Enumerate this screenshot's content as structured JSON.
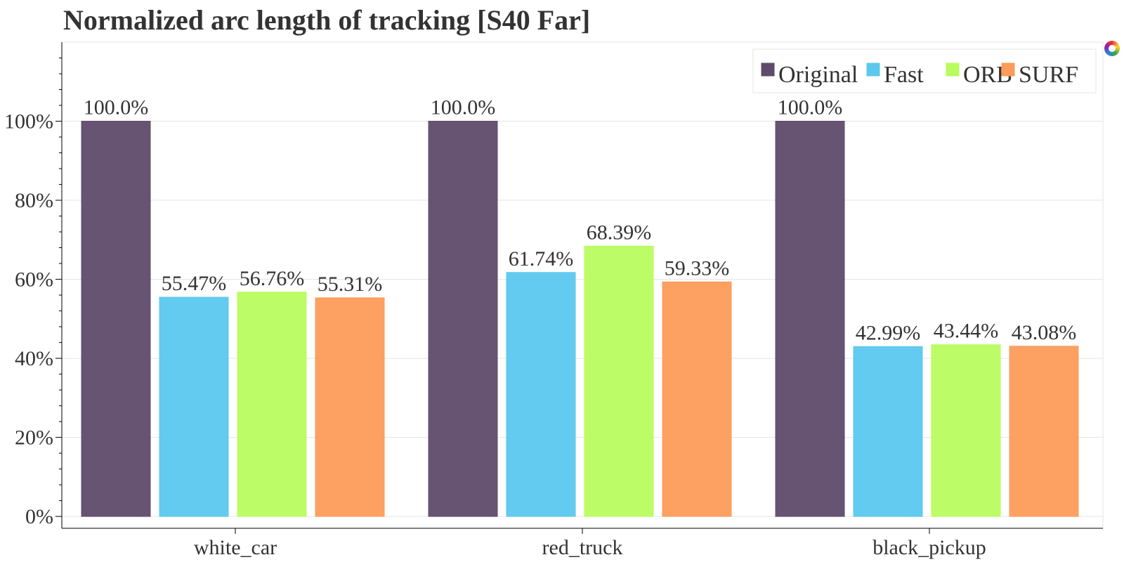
{
  "chart_data": {
    "type": "bar",
    "title": "Normalized arc length of tracking [S40 Far]",
    "xlabel": "",
    "ylabel": "",
    "categories": [
      "white_car",
      "red_truck",
      "black_pickup"
    ],
    "series": [
      {
        "name": "Original",
        "color": "#5f4b6b",
        "values": [
          100.0,
          100.0,
          100.0
        ],
        "labels": [
          "100.0%",
          "100.0%",
          "100.0%"
        ]
      },
      {
        "name": "Fast",
        "color": "#5bc8ee",
        "values": [
          55.47,
          61.74,
          42.99
        ],
        "labels": [
          "55.47%",
          "61.74%",
          "42.99%"
        ]
      },
      {
        "name": "ORB",
        "color": "#b8fc5e",
        "values": [
          56.76,
          68.39,
          43.44
        ],
        "labels": [
          "56.76%",
          "68.39%",
          "43.44%"
        ]
      },
      {
        "name": "SURF",
        "color": "#fc9c5a",
        "values": [
          55.31,
          59.33,
          43.08
        ],
        "labels": [
          "55.31%",
          "59.33%",
          "43.08%"
        ]
      }
    ],
    "y_ticks": [
      "0%",
      "20%",
      "40%",
      "60%",
      "80%",
      "100%"
    ],
    "y_tick_values": [
      0,
      20,
      40,
      60,
      80,
      100
    ],
    "ylim": [
      -3,
      120
    ],
    "grid": true,
    "legend_position": "top-right"
  },
  "toolbar": {
    "logo_icon": "bokeh-logo-icon"
  }
}
